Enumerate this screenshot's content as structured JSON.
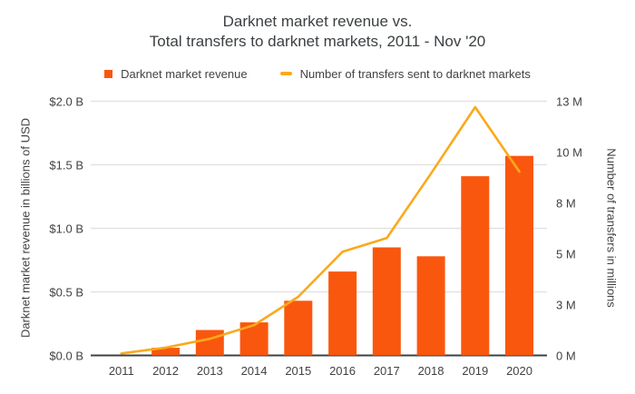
{
  "title": {
    "line1": "Darknet market revenue vs.",
    "line2": "Total transfers to darknet markets, 2011 - Nov '20"
  },
  "legend": {
    "revenue_label": "Darknet market revenue",
    "transfers_label": "Number of transfers sent to darknet markets"
  },
  "colors": {
    "bar": "#F9570E",
    "line": "#FBA91B",
    "gridline": "#e3e3e3",
    "axis_line": "#3c4043",
    "text": "#424242",
    "background": "#ffffff"
  },
  "chart_data": {
    "type": "bar",
    "subtype": "combo-bar-line",
    "title": "Darknet market revenue vs. Total transfers to darknet markets, 2011 - Nov '20",
    "categories": [
      "2011",
      "2012",
      "2013",
      "2014",
      "2015",
      "2016",
      "2017",
      "2018",
      "2019",
      "2020"
    ],
    "series": [
      {
        "name": "Darknet market revenue",
        "type": "bar",
        "axis": "left",
        "color": "#F9570E",
        "values": [
          0.0,
          0.06,
          0.2,
          0.26,
          0.43,
          0.66,
          0.85,
          0.78,
          1.41,
          1.57
        ]
      },
      {
        "name": "Number of transfers sent to darknet markets",
        "type": "line",
        "axis": "right",
        "color": "#FBA91B",
        "values": [
          0.1,
          0.4,
          0.85,
          1.55,
          3.0,
          5.3,
          6.0,
          9.3,
          12.7,
          9.4
        ]
      }
    ],
    "left_axis": {
      "title": "Darknet market revenue in billions of USD",
      "ticks": [
        "$2.0 B",
        "$1.5 B",
        "$1.0 B",
        "$0.5 B",
        "$0.0 B"
      ],
      "tick_values": [
        2.0,
        1.5,
        1.0,
        0.5,
        0.0
      ],
      "range": [
        0,
        2.0
      ]
    },
    "right_axis": {
      "title": "Number of transfers in millions",
      "ticks": [
        "13 M",
        "10 M",
        "8 M",
        "5 M",
        "3 M",
        "0 M"
      ],
      "tick_values": [
        13,
        10.4,
        7.8,
        5.2,
        2.6,
        0
      ],
      "range": [
        0,
        13
      ]
    },
    "grid": true,
    "legend_position": "top"
  }
}
